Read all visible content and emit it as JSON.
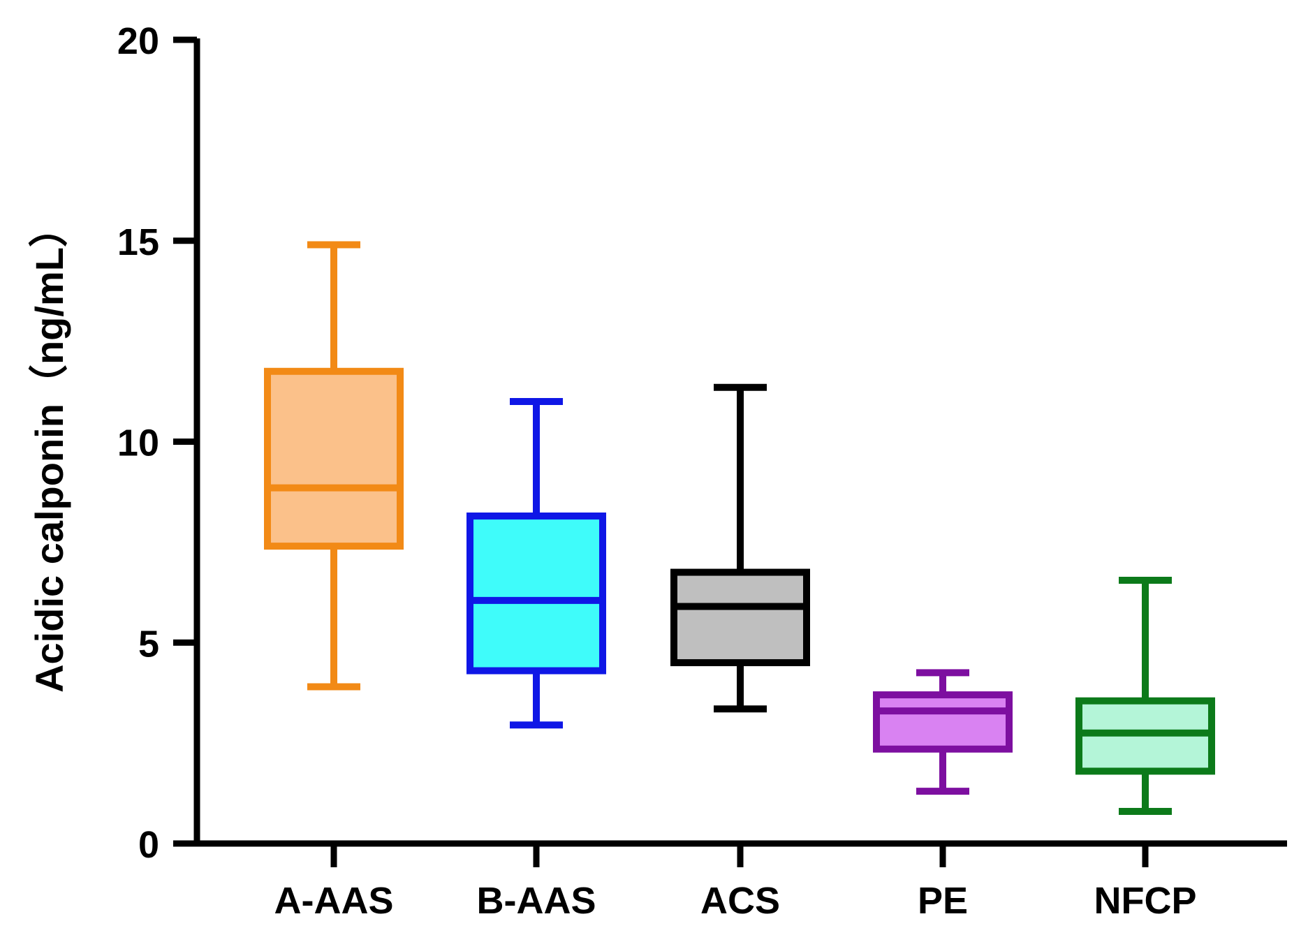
{
  "chart_data": {
    "type": "box",
    "title": "",
    "xlabel": "",
    "ylabel": "Acidic calponin（ng/mL）",
    "ylim": [
      0,
      20
    ],
    "yticks": [
      0,
      5,
      10,
      15,
      20
    ],
    "categories": [
      "A-AAS",
      "B-AAS",
      "ACS",
      "PE",
      "NFCP"
    ],
    "boxes": [
      {
        "name": "A-AAS",
        "min": 3.9,
        "q1": 7.4,
        "median": 8.85,
        "q3": 11.75,
        "max": 14.9,
        "fill": "#fbc18a",
        "stroke": "#f28a16"
      },
      {
        "name": "B-AAS",
        "min": 2.95,
        "q1": 4.3,
        "median": 6.05,
        "q3": 8.15,
        "max": 11.0,
        "fill": "#3ffcfa",
        "stroke": "#0f17e6"
      },
      {
        "name": "ACS",
        "min": 3.35,
        "q1": 4.5,
        "median": 5.9,
        "q3": 6.75,
        "max": 11.35,
        "fill": "#bfbfbf",
        "stroke": "#000000"
      },
      {
        "name": "PE",
        "min": 1.3,
        "q1": 2.35,
        "median": 3.3,
        "q3": 3.7,
        "max": 4.25,
        "fill": "#d982f2",
        "stroke": "#7d0fa0"
      },
      {
        "name": "NFCP",
        "min": 0.8,
        "q1": 1.8,
        "median": 2.75,
        "q3": 3.55,
        "max": 6.55,
        "fill": "#b4f5d8",
        "stroke": "#0c7a1a"
      }
    ],
    "grid": false,
    "legend": "none"
  }
}
